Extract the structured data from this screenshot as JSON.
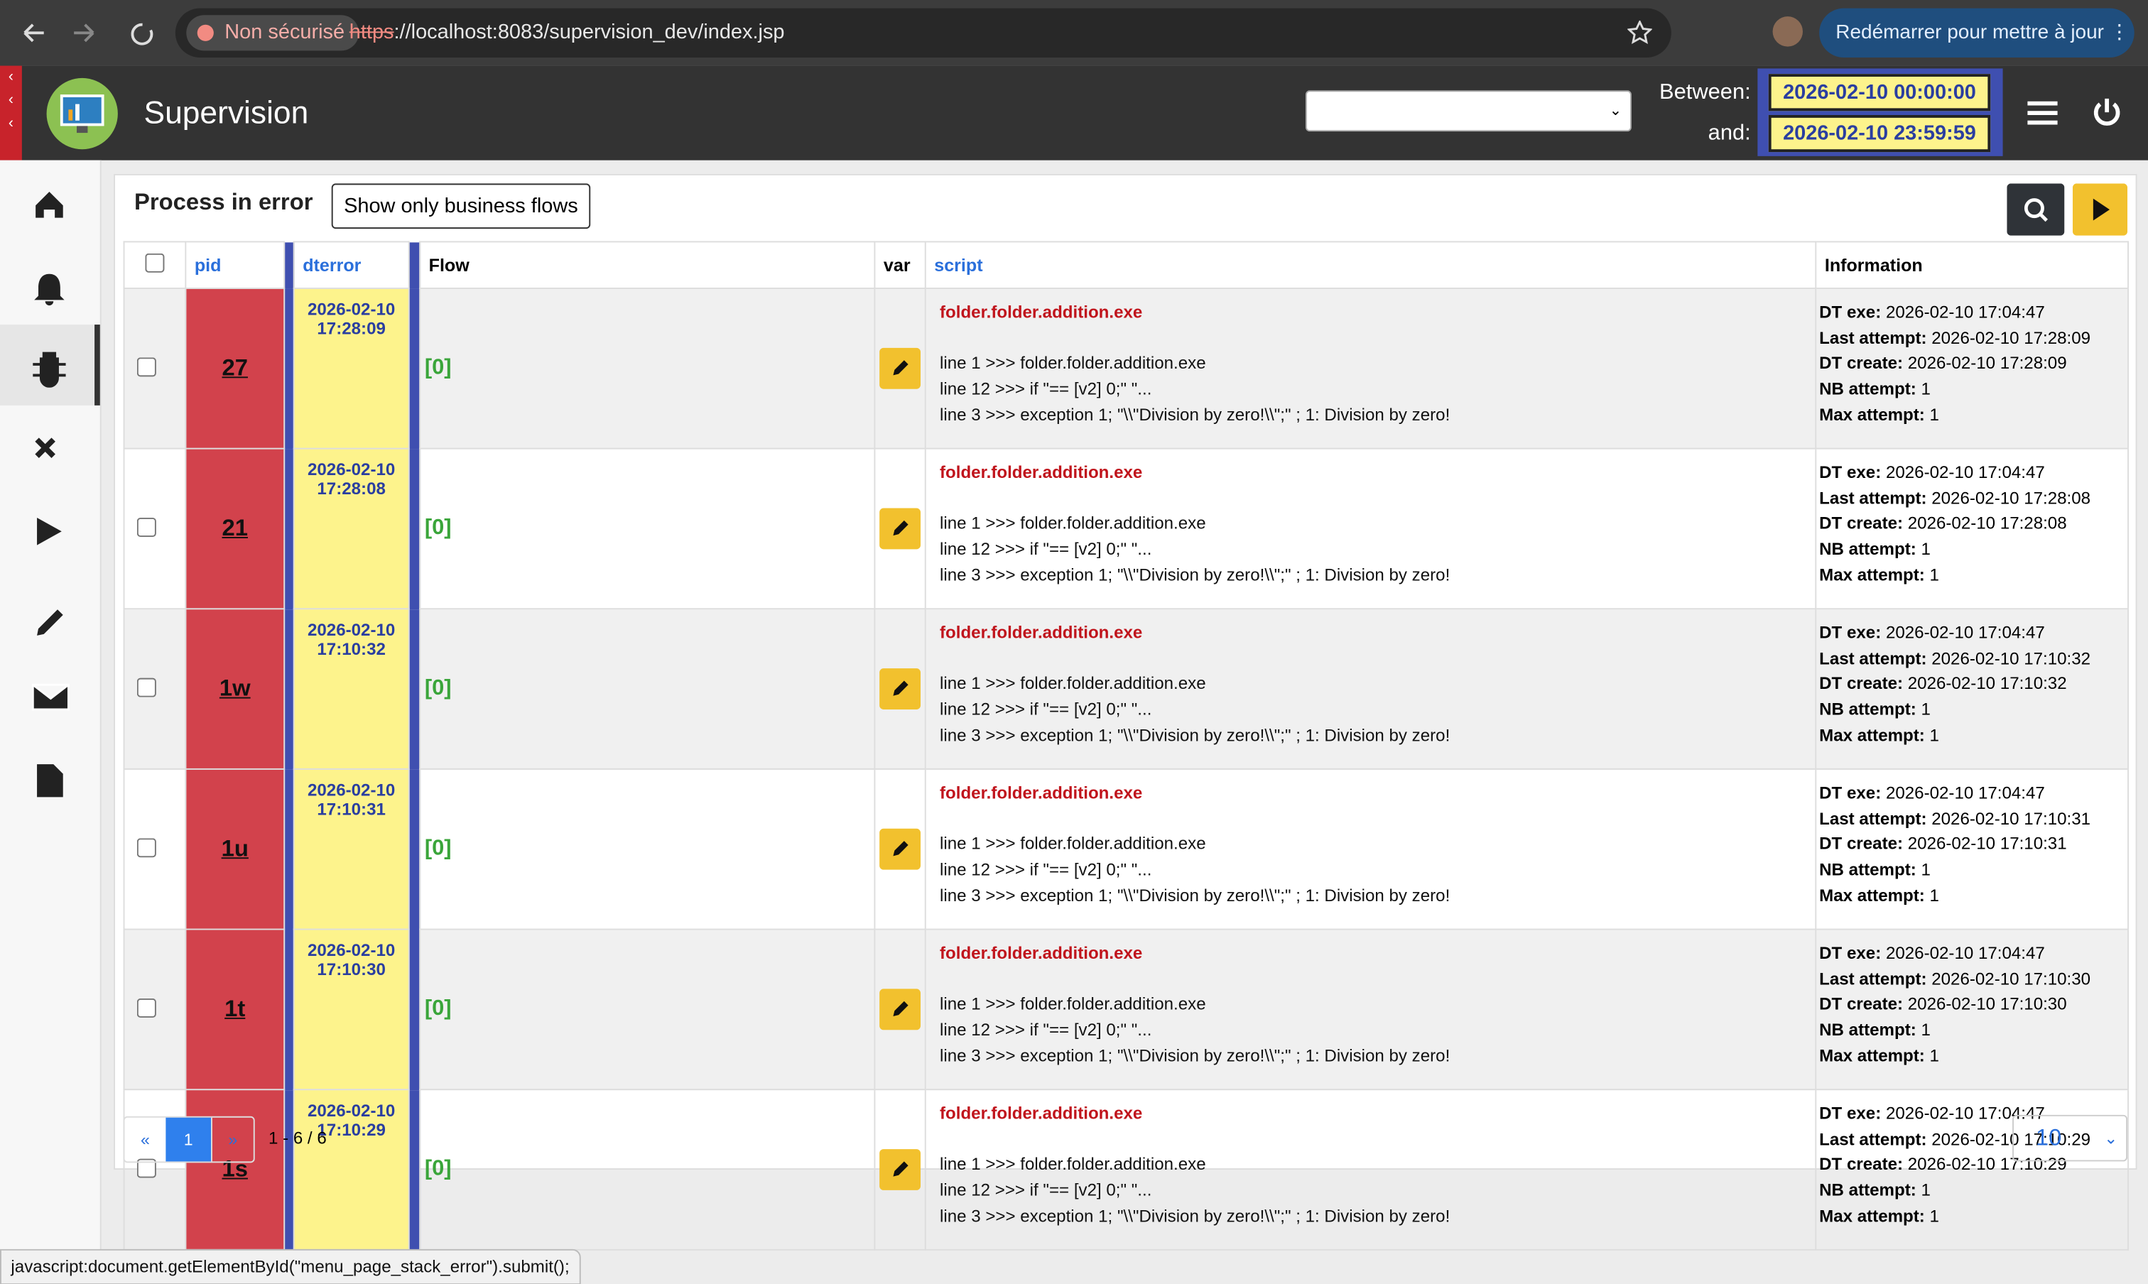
{
  "browser": {
    "security": "Non sécurisé",
    "url_scheme": "https",
    "url_rest": "://localhost:8083/supervision_dev/index.jsp",
    "update_button": "Redémarrer pour mettre à jour"
  },
  "header": {
    "title": "Supervision",
    "between_label": "Between:",
    "between_value": "2026-02-10 00:00:00",
    "and_label": "and:",
    "and_value": "2026-02-10 23:59:59"
  },
  "panel": {
    "title": "Process in error",
    "filter_button": "Show only business flows"
  },
  "table": {
    "columns": [
      "pid",
      "dterror",
      "Flow",
      "var",
      "script",
      "Information"
    ],
    "rows": [
      {
        "pid": "27",
        "dterror": "2026-02-10 17:28:09",
        "flow": "[0]",
        "script_title": "folder.folder.addition.exe",
        "lines": [
          "line 1 >>> folder.folder.addition.exe",
          "line 12 >>> if \"== [v2] 0;\" \"...",
          "line 3 >>> exception 1; \"\\\\\"Division by zero!\\\\\";\" ; 1: Division by zero!"
        ],
        "info": [
          {
            "label": "DT exe:",
            "value": "2026-02-10 17:04:47"
          },
          {
            "label": "Last attempt:",
            "value": "2026-02-10 17:28:09"
          },
          {
            "label": "DT create:",
            "value": "2026-02-10 17:28:09"
          },
          {
            "label": "NB attempt:",
            "value": "1"
          },
          {
            "label": "Max attempt:",
            "value": "1"
          }
        ]
      },
      {
        "pid": "21",
        "dterror": "2026-02-10 17:28:08",
        "flow": "[0]",
        "script_title": "folder.folder.addition.exe",
        "lines": [
          "line 1 >>> folder.folder.addition.exe",
          "line 12 >>> if \"== [v2] 0;\" \"...",
          "line 3 >>> exception 1; \"\\\\\"Division by zero!\\\\\";\" ; 1: Division by zero!"
        ],
        "info": [
          {
            "label": "DT exe:",
            "value": "2026-02-10 17:04:47"
          },
          {
            "label": "Last attempt:",
            "value": "2026-02-10 17:28:08"
          },
          {
            "label": "DT create:",
            "value": "2026-02-10 17:28:08"
          },
          {
            "label": "NB attempt:",
            "value": "1"
          },
          {
            "label": "Max attempt:",
            "value": "1"
          }
        ]
      },
      {
        "pid": "1w",
        "dterror": "2026-02-10 17:10:32",
        "flow": "[0]",
        "script_title": "folder.folder.addition.exe",
        "lines": [
          "line 1 >>> folder.folder.addition.exe",
          "line 12 >>> if \"== [v2] 0;\" \"...",
          "line 3 >>> exception 1; \"\\\\\"Division by zero!\\\\\";\" ; 1: Division by zero!"
        ],
        "info": [
          {
            "label": "DT exe:",
            "value": "2026-02-10 17:04:47"
          },
          {
            "label": "Last attempt:",
            "value": "2026-02-10 17:10:32"
          },
          {
            "label": "DT create:",
            "value": "2026-02-10 17:10:32"
          },
          {
            "label": "NB attempt:",
            "value": "1"
          },
          {
            "label": "Max attempt:",
            "value": "1"
          }
        ]
      },
      {
        "pid": "1u",
        "dterror": "2026-02-10 17:10:31",
        "flow": "[0]",
        "script_title": "folder.folder.addition.exe",
        "lines": [
          "line 1 >>> folder.folder.addition.exe",
          "line 12 >>> if \"== [v2] 0;\" \"...",
          "line 3 >>> exception 1; \"\\\\\"Division by zero!\\\\\";\" ; 1: Division by zero!"
        ],
        "info": [
          {
            "label": "DT exe:",
            "value": "2026-02-10 17:04:47"
          },
          {
            "label": "Last attempt:",
            "value": "2026-02-10 17:10:31"
          },
          {
            "label": "DT create:",
            "value": "2026-02-10 17:10:31"
          },
          {
            "label": "NB attempt:",
            "value": "1"
          },
          {
            "label": "Max attempt:",
            "value": "1"
          }
        ]
      },
      {
        "pid": "1t",
        "dterror": "2026-02-10 17:10:30",
        "flow": "[0]",
        "script_title": "folder.folder.addition.exe",
        "lines": [
          "line 1 >>> folder.folder.addition.exe",
          "line 12 >>> if \"== [v2] 0;\" \"...",
          "line 3 >>> exception 1; \"\\\\\"Division by zero!\\\\\";\" ; 1: Division by zero!"
        ],
        "info": [
          {
            "label": "DT exe:",
            "value": "2026-02-10 17:04:47"
          },
          {
            "label": "Last attempt:",
            "value": "2026-02-10 17:10:30"
          },
          {
            "label": "DT create:",
            "value": "2026-02-10 17:10:30"
          },
          {
            "label": "NB attempt:",
            "value": "1"
          },
          {
            "label": "Max attempt:",
            "value": "1"
          }
        ]
      },
      {
        "pid": "1s",
        "dterror": "2026-02-10 17:10:29",
        "flow": "[0]",
        "script_title": "folder.folder.addition.exe",
        "lines": [
          "line 1 >>> folder.folder.addition.exe",
          "line 12 >>> if \"== [v2] 0;\" \"...",
          "line 3 >>> exception 1; \"\\\\\"Division by zero!\\\\\";\" ; 1: Division by zero!"
        ],
        "info": [
          {
            "label": "DT exe:",
            "value": "2026-02-10 17:04:47"
          },
          {
            "label": "Last attempt:",
            "value": "2026-02-10 17:10:29"
          },
          {
            "label": "DT create:",
            "value": "2026-02-10 17:10:29"
          },
          {
            "label": "NB attempt:",
            "value": "1"
          },
          {
            "label": "Max attempt:",
            "value": "1"
          }
        ]
      }
    ]
  },
  "pagination": {
    "prev": "«",
    "page": "1",
    "next": "»",
    "range": "1 - 6 / 6",
    "page_size": "10"
  },
  "status_bar": "javascript:document.getElementById(\"menu_page_stack_error\").submit();"
}
